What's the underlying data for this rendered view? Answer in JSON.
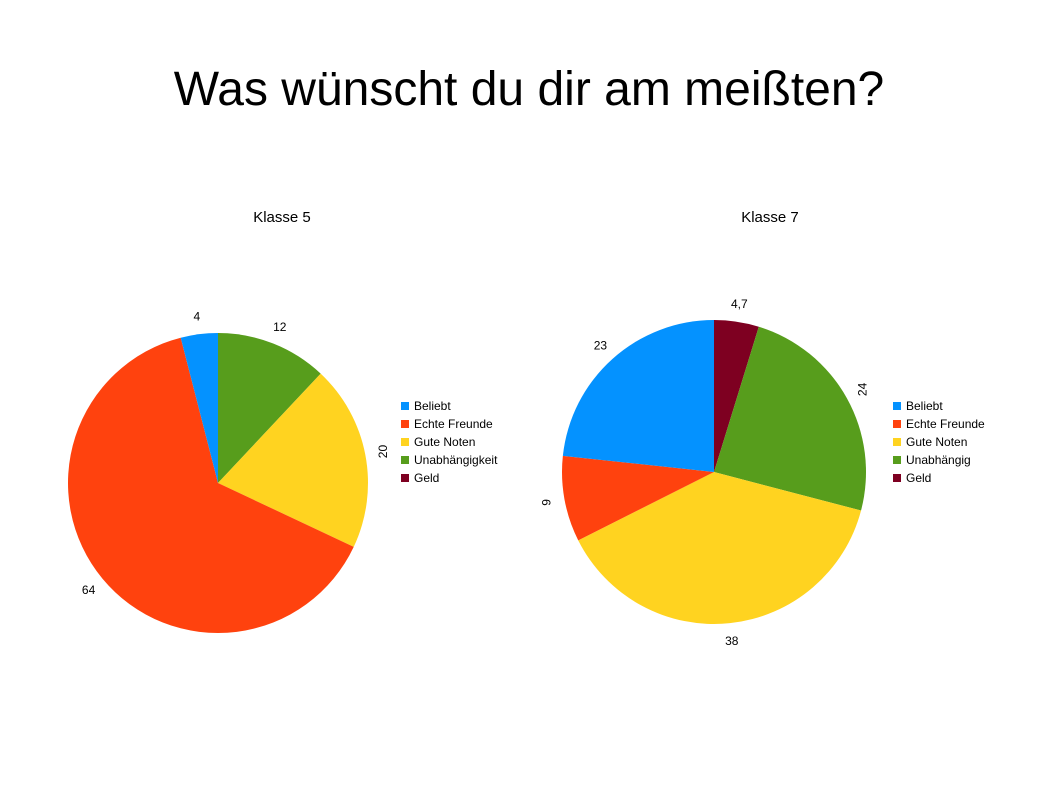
{
  "slide": {
    "title": "Was wünscht du dir am meißten?"
  },
  "chart_data": [
    {
      "type": "pie",
      "title": "Klasse 5",
      "legend_position": "right",
      "categories": [
        "Beliebt",
        "Echte Freunde",
        "Gute Noten",
        "Unabhängigkeit",
        "Geld"
      ],
      "values": [
        4,
        64,
        20,
        12,
        0
      ],
      "value_labels": [
        "4",
        "64",
        "20",
        "12",
        ""
      ],
      "colors": [
        "#0492ff",
        "#ff420e",
        "#ffd320",
        "#579d1c",
        "#7e0021"
      ]
    },
    {
      "type": "pie",
      "title": "Klasse 7",
      "legend_position": "right",
      "categories": [
        "Beliebt",
        "Echte Freunde",
        "Gute Noten",
        "Unabhängig",
        "Geld"
      ],
      "values": [
        23,
        9,
        38,
        24,
        4.7
      ],
      "value_labels": [
        "23",
        "9",
        "38",
        "24",
        "4,7"
      ],
      "colors": [
        "#0492ff",
        "#ff420e",
        "#ffd320",
        "#579d1c",
        "#7e0021"
      ]
    }
  ]
}
